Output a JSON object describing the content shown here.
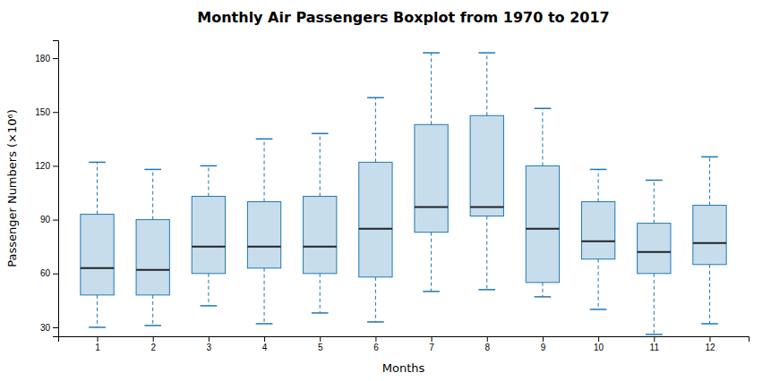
{
  "chart_data": {
    "type": "box",
    "title": "Monthly Air Passengers Boxplot from 1970 to 2017",
    "xlabel": "Months",
    "ylabel": "Passenger Numbers (×10⁶)",
    "x": [
      1,
      2,
      3,
      4,
      5,
      6,
      7,
      8,
      9,
      10,
      11,
      12
    ],
    "boxes": [
      {
        "whislo": 30,
        "q1": 48,
        "med": 63,
        "q3": 93,
        "whishi": 122
      },
      {
        "whislo": 31,
        "q1": 48,
        "med": 62,
        "q3": 90,
        "whishi": 118
      },
      {
        "whislo": 42,
        "q1": 60,
        "med": 75,
        "q3": 103,
        "whishi": 120
      },
      {
        "whislo": 32,
        "q1": 63,
        "med": 75,
        "q3": 100,
        "whishi": 135
      },
      {
        "whislo": 38,
        "q1": 60,
        "med": 75,
        "q3": 103,
        "whishi": 138
      },
      {
        "whislo": 33,
        "q1": 58,
        "med": 85,
        "q3": 122,
        "whishi": 158
      },
      {
        "whislo": 50,
        "q1": 83,
        "med": 97,
        "q3": 143,
        "whishi": 183
      },
      {
        "whislo": 51,
        "q1": 92,
        "med": 97,
        "q3": 148,
        "whishi": 183
      },
      {
        "whislo": 47,
        "q1": 55,
        "med": 85,
        "q3": 120,
        "whishi": 152
      },
      {
        "whislo": 40,
        "q1": 68,
        "med": 78,
        "q3": 100,
        "whishi": 118
      },
      {
        "whislo": 26,
        "q1": 60,
        "med": 72,
        "q3": 88,
        "whishi": 112
      },
      {
        "whislo": 32,
        "q1": 65,
        "med": 77,
        "q3": 98,
        "whishi": 125
      }
    ],
    "xlim": [
      0.3,
      12.7
    ],
    "xticks": [
      1,
      2,
      3,
      4,
      5,
      6,
      7,
      8,
      9,
      10,
      11,
      12
    ],
    "ylim": [
      25,
      190
    ],
    "yticks": [
      30,
      60,
      90,
      120,
      150,
      180
    ],
    "grid": false
  }
}
